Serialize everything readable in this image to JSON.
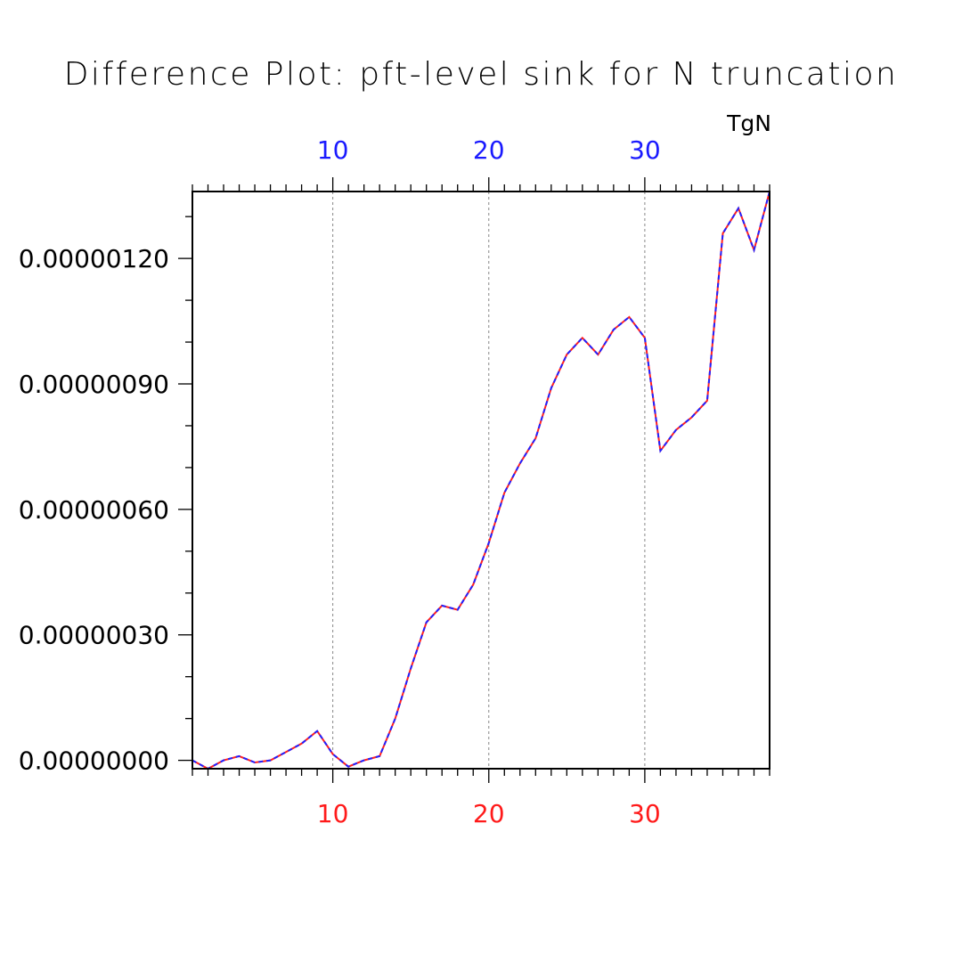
{
  "chart_data": {
    "type": "line",
    "title": "Difference Plot: pft-level sink for N truncation",
    "units": "TgN",
    "xlim": [
      1,
      38
    ],
    "ylim": [
      -2e-08,
      1.36e-06
    ],
    "x_ticks_major": [
      10,
      20,
      30
    ],
    "x_tick_labels_top": [
      "10",
      "20",
      "30"
    ],
    "x_tick_labels_bottom": [
      "10",
      "20",
      "30"
    ],
    "y_ticks": [
      0.0,
      3e-07,
      6e-07,
      9e-07,
      1.2e-06
    ],
    "y_tick_labels": [
      "0.00000000",
      "0.00000030",
      "0.00000060",
      "0.00000090",
      "0.00000120"
    ],
    "grid": "vertical dashed at major x ticks",
    "colors": {
      "series_a": "#ff2020",
      "series_b": "#2020ff",
      "top_ticks": "#1a1aff",
      "bottom_ticks": "#ff1a1a"
    },
    "x": [
      1,
      2,
      3,
      4,
      5,
      6,
      7,
      8,
      9,
      10,
      11,
      12,
      13,
      14,
      15,
      16,
      17,
      18,
      19,
      20,
      21,
      22,
      23,
      24,
      25,
      26,
      27,
      28,
      29,
      30,
      31,
      32,
      33,
      34,
      35,
      36,
      37,
      38
    ],
    "series": [
      {
        "values": [
          0.0,
          -2e-08,
          0.0,
          1e-08,
          -5e-09,
          0.0,
          2e-08,
          4e-08,
          7e-08,
          1.5e-08,
          -1.5e-08,
          0.0,
          1e-08,
          1e-07,
          2.2e-07,
          3.3e-07,
          3.7e-07,
          3.6e-07,
          4.2e-07,
          5.2e-07,
          6.4e-07,
          7.1e-07,
          7.7e-07,
          8.9e-07,
          9.7e-07,
          1.01e-06,
          9.7e-07,
          1.03e-06,
          1.06e-06,
          1.01e-06,
          7.4e-07,
          7.9e-07,
          8.2e-07,
          8.6e-07,
          1.26e-06,
          1.32e-06,
          1.22e-06,
          1.36e-06
        ]
      },
      {
        "values": [
          0.0,
          -2e-08,
          0.0,
          1e-08,
          -5e-09,
          0.0,
          2e-08,
          4e-08,
          7e-08,
          1.5e-08,
          -1.5e-08,
          0.0,
          1e-08,
          1e-07,
          2.2e-07,
          3.3e-07,
          3.7e-07,
          3.6e-07,
          4.2e-07,
          5.2e-07,
          6.4e-07,
          7.1e-07,
          7.7e-07,
          8.9e-07,
          9.7e-07,
          1.01e-06,
          9.7e-07,
          1.03e-06,
          1.06e-06,
          1.01e-06,
          7.4e-07,
          7.9e-07,
          8.2e-07,
          8.6e-07,
          1.26e-06,
          1.32e-06,
          1.22e-06,
          1.36e-06
        ]
      }
    ]
  }
}
